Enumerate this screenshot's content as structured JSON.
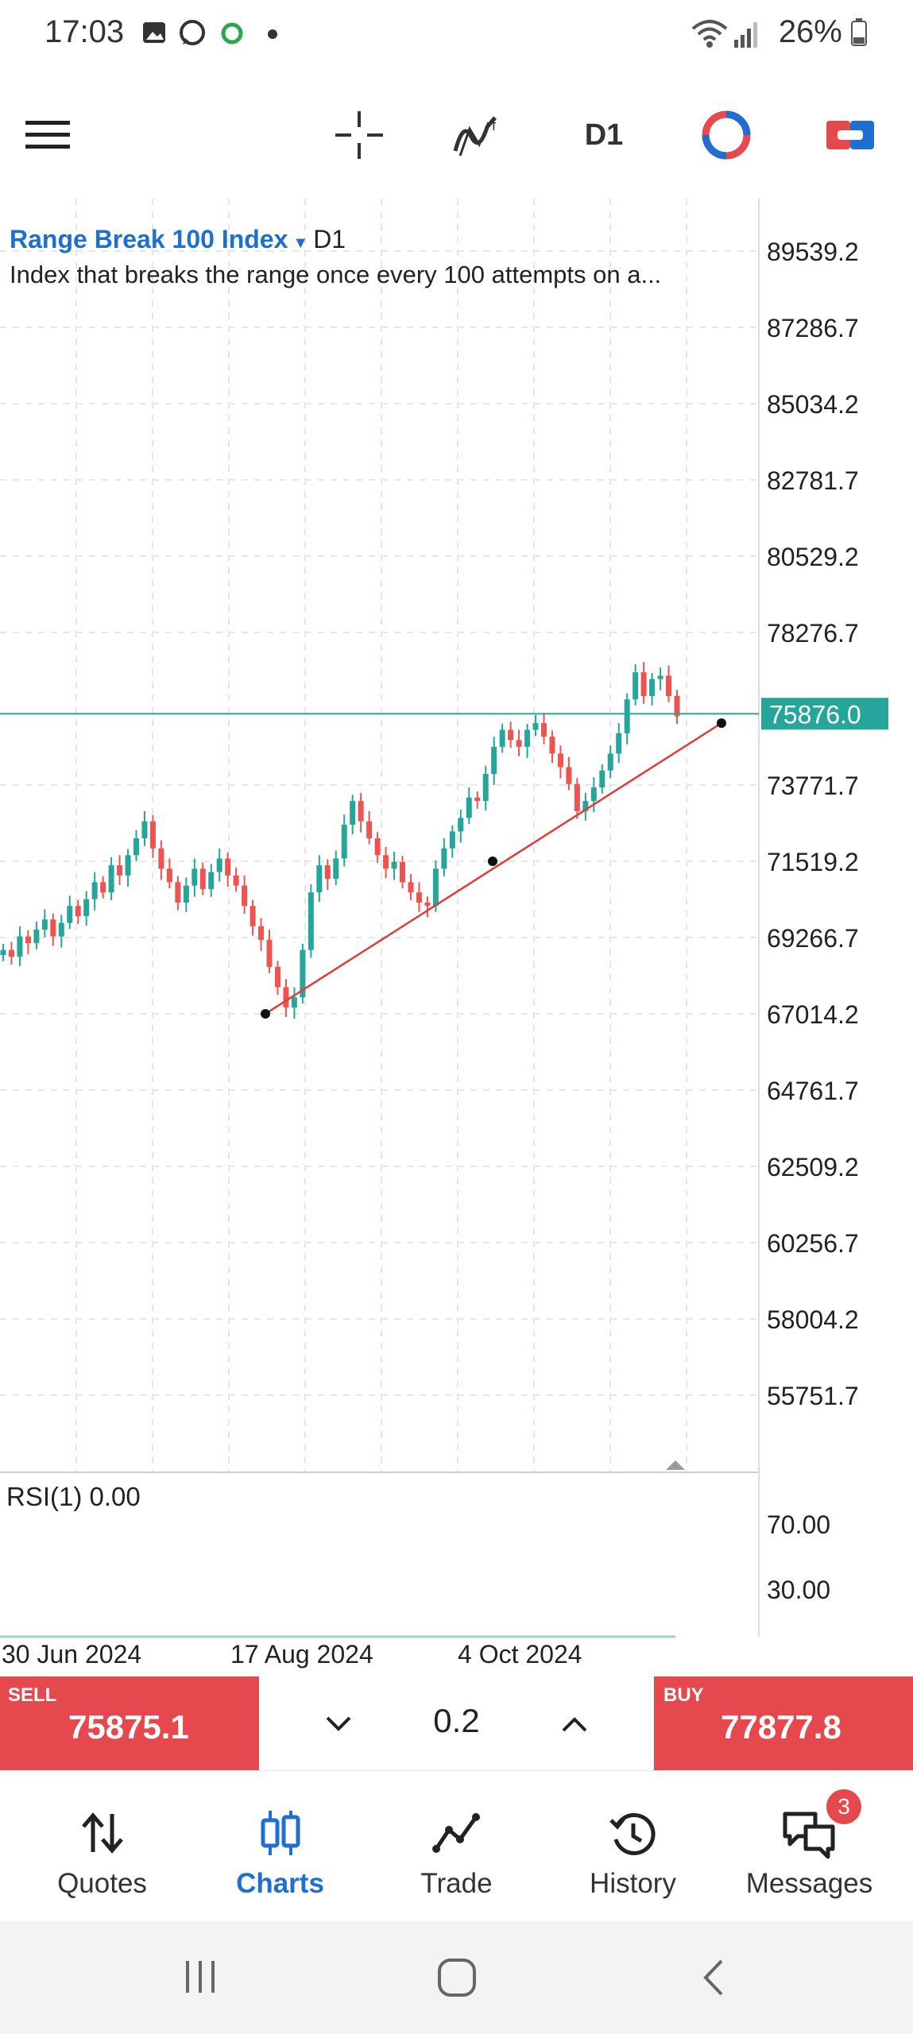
{
  "status_bar": {
    "time": "17:03",
    "battery": "26%"
  },
  "toolbar": {
    "timeframe": "D1"
  },
  "colors": {
    "accent": "#1e6fd0",
    "sell_buy": "#e5484d",
    "price_line": "#26a69a",
    "trendline": "#e53935",
    "bull_candle": "#26a69a",
    "bear_candle": "#ef5350"
  },
  "symbol": {
    "name": "Range Break 100 Index",
    "timeframe": "D1",
    "description": "Index that breaks the range once every 100 attempts on a..."
  },
  "chart_data": {
    "type": "candlestick",
    "price_axis_labels": [
      "89539.2",
      "87286.7",
      "85034.2",
      "82781.7",
      "80529.2",
      "78276.7",
      "75876.0",
      "73771.7",
      "71519.2",
      "69266.7",
      "67014.2",
      "64761.7",
      "62509.2",
      "60256.7",
      "58004.2",
      "55751.7"
    ],
    "price_axis_values": [
      89539.2,
      87286.7,
      85034.2,
      82781.7,
      80529.2,
      78276.7,
      73771.7,
      71519.2,
      69266.7,
      67014.2,
      64761.7,
      62509.2,
      60256.7,
      58004.2,
      55751.7
    ],
    "current_price_label": "75876.0",
    "current_price": 75876.0,
    "x_labels": [
      "30 Jun 2024",
      "17 Aug 2024",
      "4 Oct 2024"
    ],
    "close_series": [
      68900,
      68700,
      69300,
      69100,
      69500,
      69800,
      69300,
      69700,
      70200,
      69900,
      70400,
      70900,
      70600,
      71400,
      71100,
      71700,
      72200,
      72700,
      71900,
      71300,
      70900,
      70300,
      70800,
      71300,
      70700,
      71200,
      71600,
      71100,
      70800,
      70200,
      69600,
      69200,
      68400,
      67800,
      67200,
      67500,
      68900,
      70600,
      71400,
      71000,
      71600,
      72600,
      73300,
      72700,
      72200,
      71700,
      71300,
      71500,
      70900,
      70600,
      70300,
      70200,
      71300,
      71900,
      72400,
      72800,
      73400,
      73300,
      74100,
      74900,
      75400,
      75100,
      74900,
      75400,
      75600,
      75200,
      74700,
      74300,
      73800,
      73000,
      73300,
      73700,
      74200,
      74700,
      75300,
      76300,
      77100,
      76400,
      76900,
      77000,
      76400,
      75800
    ],
    "trendline": {
      "start_price": 67014.2,
      "mid_price": 71519.2,
      "end_price": 75600
    },
    "indicator": {
      "label": "RSI(1) 0.00",
      "levels": [
        "70.00",
        "30.00"
      ],
      "level_values": [
        70,
        30
      ]
    }
  },
  "trade_panel": {
    "sell_label": "SELL",
    "sell_price": "75875.1",
    "buy_label": "BUY",
    "buy_price": "77877.8",
    "volume": "0.2"
  },
  "bottom_nav": {
    "items": [
      {
        "label": "Quotes",
        "icon": "quotes-arrows-icon"
      },
      {
        "label": "Charts",
        "icon": "candles-icon",
        "active": true
      },
      {
        "label": "Trade",
        "icon": "trade-chart-icon"
      },
      {
        "label": "History",
        "icon": "history-clock-icon"
      },
      {
        "label": "Messages",
        "icon": "messages-chat-icon"
      }
    ],
    "messages_badge": "3"
  }
}
